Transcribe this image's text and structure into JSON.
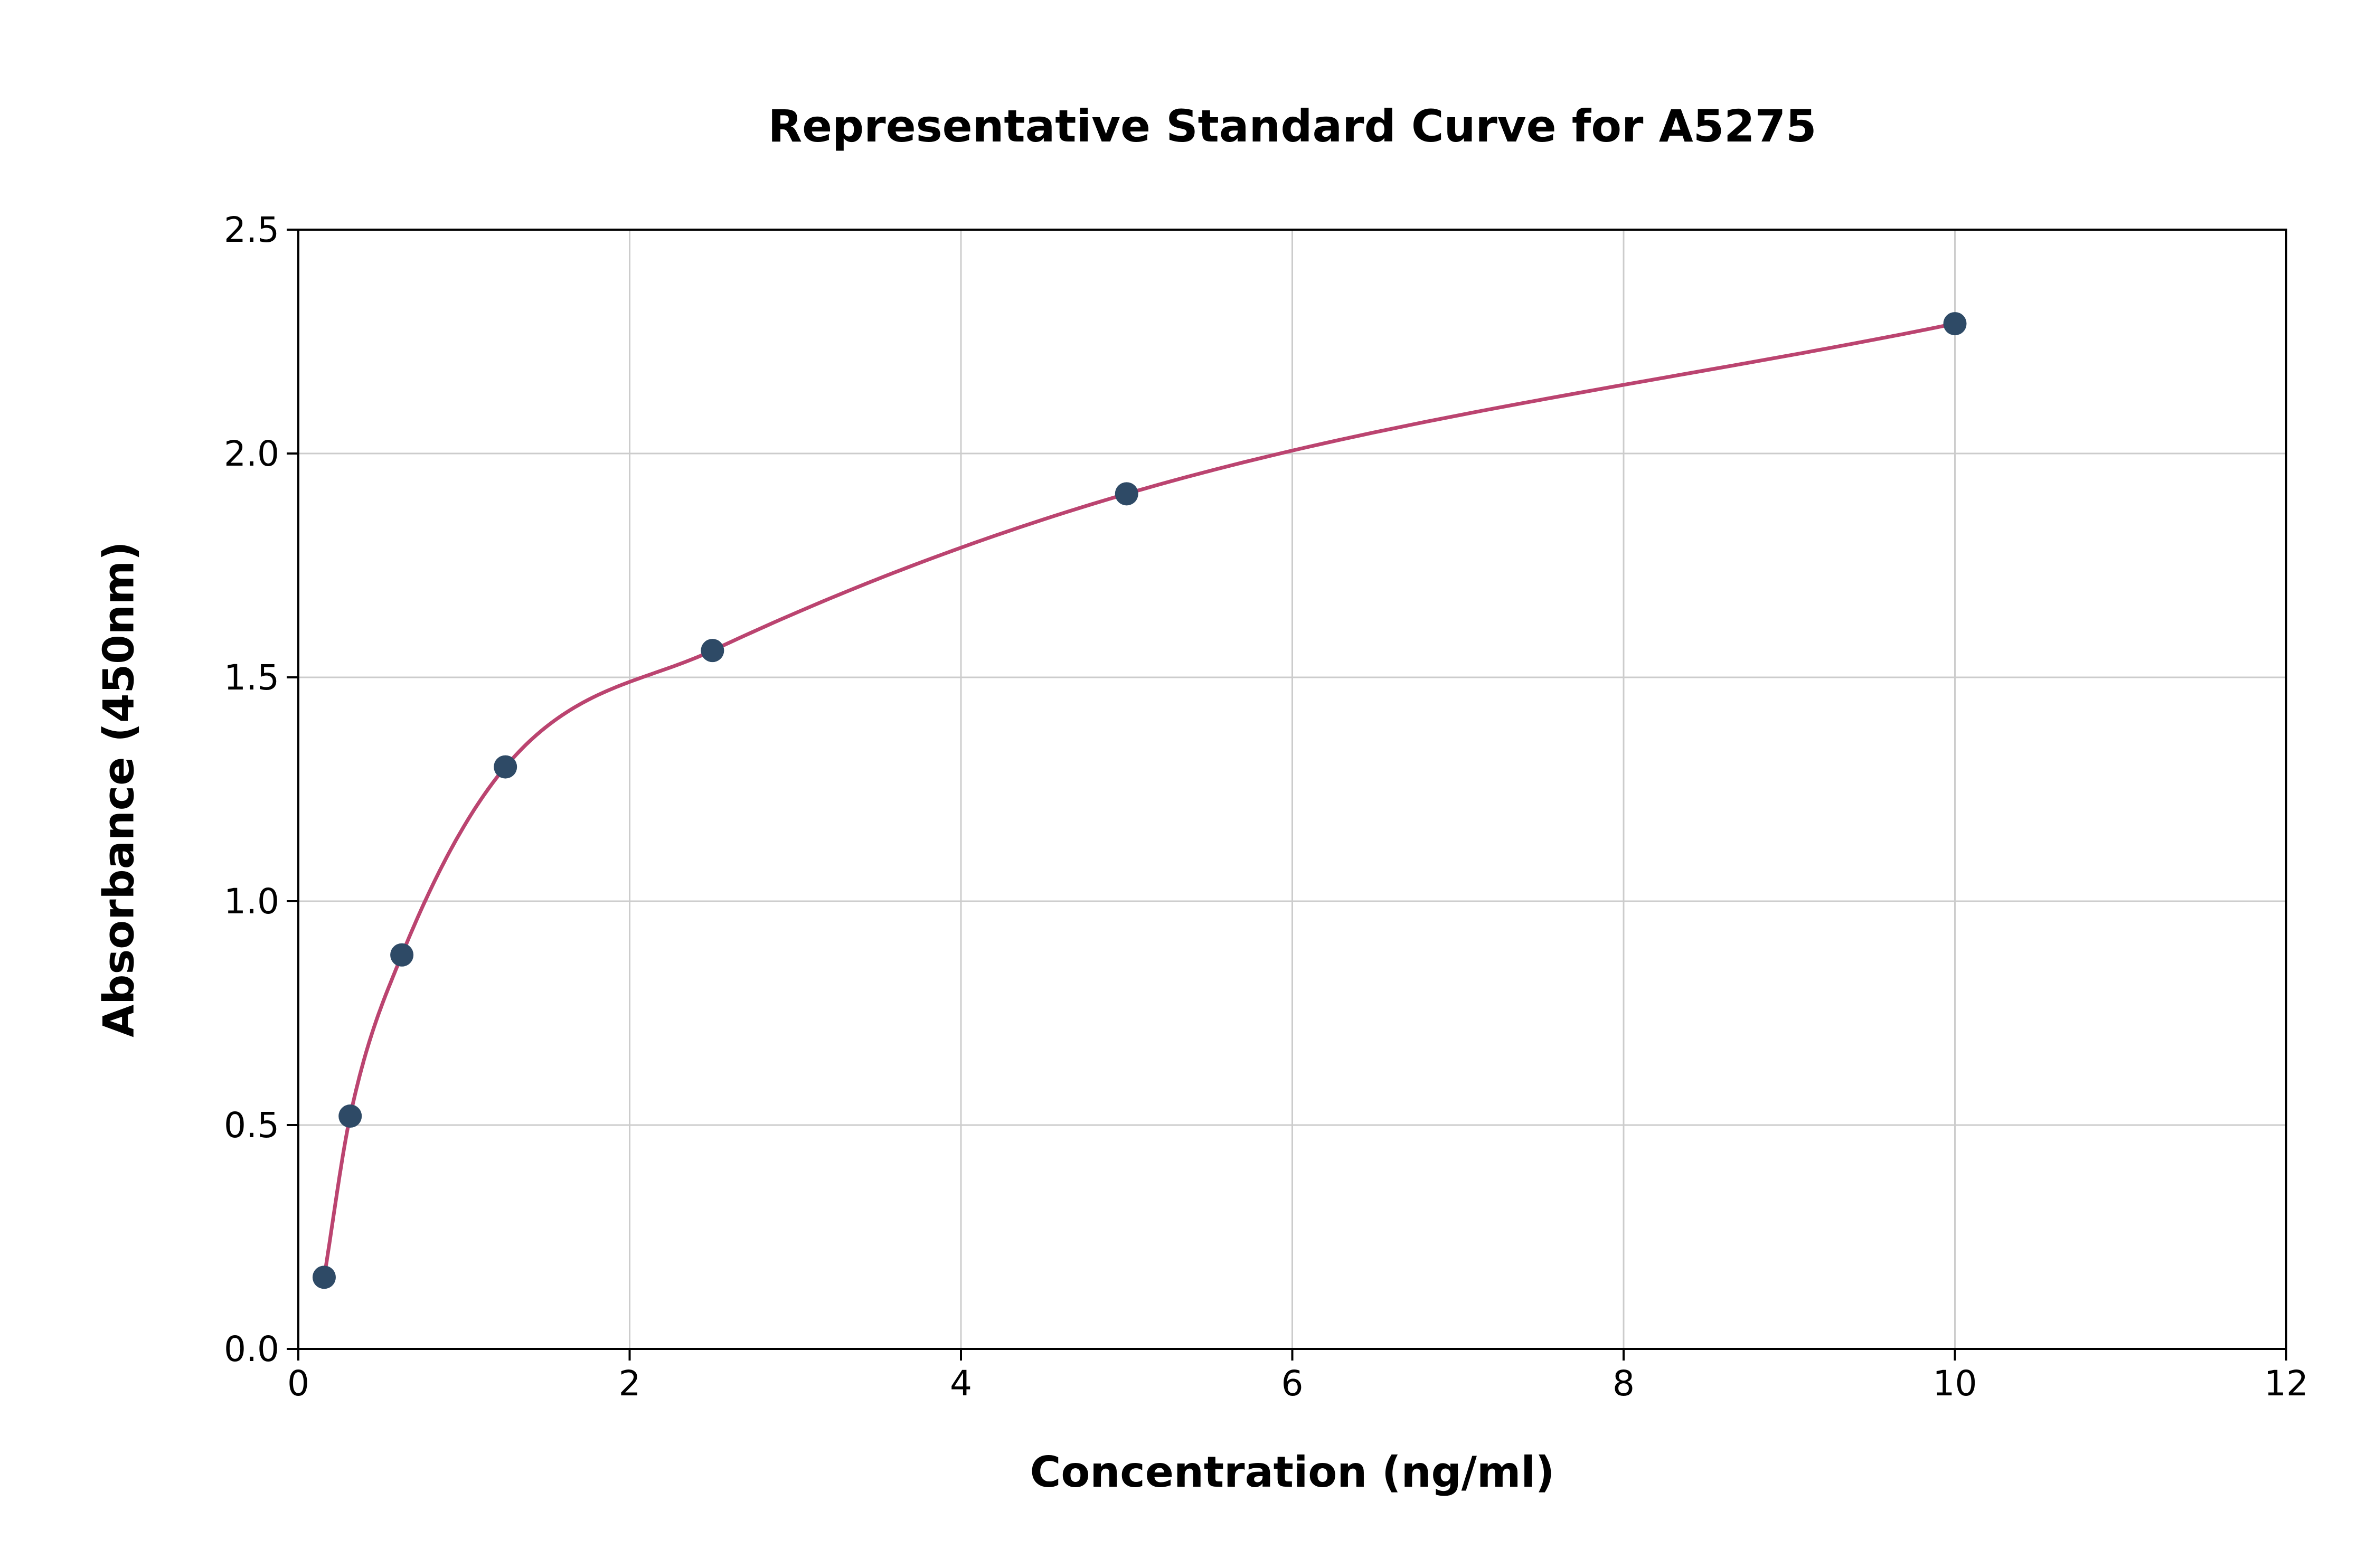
{
  "chart_data": {
    "type": "scatter",
    "title": "Representative Standard Curve for A5275",
    "xlabel": "Concentration (ng/ml)",
    "ylabel": "Absorbance (450nm)",
    "xlim": [
      0,
      12
    ],
    "ylim": [
      0,
      2.5
    ],
    "xtick_values": [
      0,
      2,
      4,
      6,
      8,
      10,
      12
    ],
    "xtick_labels": [
      "0",
      "2",
      "4",
      "6",
      "8",
      "10",
      "12"
    ],
    "ytick_values": [
      0,
      0.5,
      1.0,
      1.5,
      2.0,
      2.5
    ],
    "ytick_labels": [
      "0.0",
      "0.5",
      "1.0",
      "1.5",
      "2.0",
      "2.5"
    ],
    "grid": true,
    "legend": null,
    "x": [
      0.156,
      0.313,
      0.625,
      1.25,
      2.5,
      5,
      10
    ],
    "y": [
      0.16,
      0.52,
      0.88,
      1.3,
      1.56,
      1.91,
      2.29
    ],
    "colors": {
      "curve": "#bb4470",
      "point": "#2e4a66",
      "grid": "#cccccc",
      "axis": "#000000",
      "text": "#000000"
    }
  }
}
